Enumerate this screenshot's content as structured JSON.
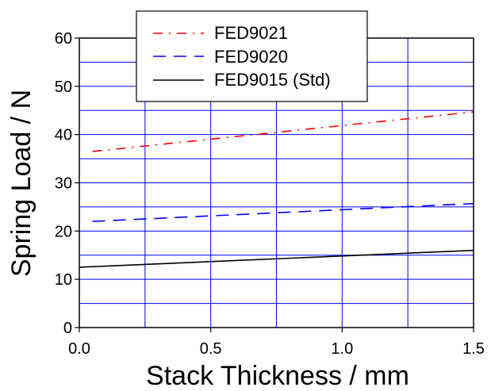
{
  "chart_data": {
    "type": "line",
    "xlabel": "Stack Thickness / mm",
    "ylabel": "Spring Load / N",
    "xlim": [
      0.0,
      1.5
    ],
    "ylim": [
      0,
      60
    ],
    "x_ticks": [
      0.0,
      0.5,
      1.0,
      1.5
    ],
    "x_tick_labels": [
      "0.0",
      "0.5",
      "1.0",
      "1.5"
    ],
    "y_ticks": [
      0,
      10,
      20,
      30,
      40,
      50,
      60
    ],
    "y_tick_labels": [
      "0",
      "10",
      "20",
      "30",
      "40",
      "50",
      "60"
    ],
    "grid": true,
    "grid_color": "#0000ff",
    "legend_position": "top",
    "series": [
      {
        "name": "FED9021",
        "color": "#ff0000",
        "style": "dash-dot",
        "x": [
          0.05,
          1.5
        ],
        "y": [
          36.5,
          44.7
        ]
      },
      {
        "name": "FED9020",
        "color": "#0000ff",
        "style": "dashed",
        "x": [
          0.05,
          1.5
        ],
        "y": [
          22.0,
          25.7
        ]
      },
      {
        "name": "FED9015 (Std)",
        "color": "#000000",
        "style": "solid",
        "x": [
          0.0,
          1.5
        ],
        "y": [
          12.5,
          16.0
        ]
      }
    ]
  }
}
